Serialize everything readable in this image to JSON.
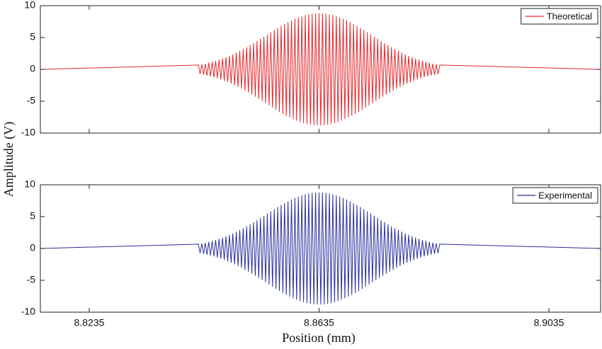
{
  "chart_data": {
    "type": "line",
    "panels": "stacked",
    "xlabel": "Position (mm)",
    "ylabel": "Amplitude (V)",
    "xlim": [
      8.815,
      8.9125
    ],
    "xticks": [
      8.8235,
      8.8635,
      8.9035
    ],
    "ylim": [
      -10,
      10
    ],
    "yticks": [
      10,
      5,
      0,
      -5,
      -10
    ],
    "legend": "upper right",
    "x": [
      8.815,
      8.8425,
      8.8428,
      8.8431,
      8.8434,
      8.8437,
      8.844,
      8.8443,
      8.8446,
      8.8449,
      8.8452,
      8.8455,
      8.8458,
      8.8461,
      8.8464,
      8.8467,
      8.847,
      8.8473,
      8.8476,
      8.8479,
      8.8482,
      8.8485,
      8.8488,
      8.8491,
      8.8494,
      8.8497,
      8.85,
      8.8503,
      8.8506,
      8.8509,
      8.8512,
      8.8515,
      8.8518,
      8.8521,
      8.8524,
      8.8527,
      8.853,
      8.8533,
      8.8536,
      8.8539,
      8.8542,
      8.8545,
      8.8548,
      8.8551,
      8.8554,
      8.8557,
      8.856,
      8.8563,
      8.8566,
      8.8569,
      8.8572,
      8.8575,
      8.8578,
      8.8581,
      8.8584,
      8.8587,
      8.859,
      8.8593,
      8.8596,
      8.8599,
      8.8602,
      8.8605,
      8.8608,
      8.8611,
      8.8614,
      8.8617,
      8.862,
      8.8623,
      8.8626,
      8.8629,
      8.8632,
      8.8635,
      8.8638,
      8.8641,
      8.8644,
      8.8647,
      8.865,
      8.8653,
      8.8656,
      8.8659,
      8.8662,
      8.8665,
      8.8668,
      8.8671,
      8.8674,
      8.8677,
      8.868,
      8.8683,
      8.8686,
      8.8689,
      8.8692,
      8.8695,
      8.8698,
      8.8701,
      8.8704,
      8.8707,
      8.871,
      8.8713,
      8.8716,
      8.8719,
      8.8722,
      8.8725,
      8.8728,
      8.8731,
      8.8734,
      8.8737,
      8.874,
      8.8743,
      8.8746,
      8.8749,
      8.8752,
      8.8755,
      8.8758,
      8.8761,
      8.8764,
      8.8767,
      8.877,
      8.8773,
      8.8776,
      8.8779,
      8.8782,
      8.8785,
      8.8788,
      8.8791,
      8.8794,
      8.8797,
      8.88,
      8.8803,
      8.8806,
      8.8809,
      8.8812,
      8.8815,
      8.8818,
      8.8821,
      8.8824,
      8.8827,
      8.883,
      8.8833,
      8.8836,
      8.8839,
      8.8842,
      8.8845,
      8.9125
    ],
    "series": [
      {
        "name": "Theoretical",
        "color": "#e3262b",
        "values": [
          0,
          0.68,
          -0.73,
          0.78,
          -0.84,
          0.9,
          -0.96,
          1.03,
          -1.1,
          1.17,
          -1.25,
          1.33,
          -1.42,
          1.51,
          -1.6,
          1.7,
          -1.8,
          1.91,
          -2.02,
          2.13,
          -2.25,
          2.37,
          -2.5,
          2.63,
          -2.76,
          2.9,
          -3.04,
          3.19,
          -3.34,
          3.49,
          -3.64,
          3.8,
          -3.96,
          4.13,
          -4.29,
          4.46,
          -4.63,
          4.8,
          -4.97,
          5.14,
          -5.32,
          5.49,
          -5.66,
          5.83,
          -6,
          6.17,
          -6.34,
          6.51,
          -6.67,
          6.83,
          -6.98,
          7.13,
          -7.28,
          7.43,
          -7.56,
          7.7,
          -7.82,
          7.94,
          -8.05,
          8.16,
          -8.26,
          8.35,
          -8.43,
          8.51,
          -8.58,
          8.64,
          -8.69,
          8.73,
          -8.76,
          8.78,
          -8.8,
          8.8,
          -8.8,
          8.78,
          -8.76,
          8.73,
          -8.69,
          8.64,
          -8.58,
          8.51,
          -8.43,
          8.35,
          -8.26,
          8.16,
          -8.05,
          7.94,
          -7.82,
          7.7,
          -7.56,
          7.43,
          -7.28,
          7.13,
          -6.98,
          6.83,
          -6.67,
          6.51,
          -6.34,
          6.17,
          -6,
          5.83,
          -5.66,
          5.49,
          -5.32,
          5.14,
          -4.97,
          4.8,
          -4.63,
          4.46,
          -4.29,
          4.13,
          -3.96,
          3.8,
          -3.64,
          3.49,
          -3.34,
          3.19,
          -3.04,
          2.9,
          -2.76,
          2.63,
          -2.5,
          2.37,
          -2.25,
          2.13,
          -2.02,
          1.91,
          -1.8,
          1.7,
          -1.6,
          1.51,
          -1.42,
          1.33,
          -1.25,
          1.17,
          -1.1,
          1.03,
          -0.96,
          0.9,
          -0.84,
          0.78,
          -0.73,
          0.68,
          0
        ]
      },
      {
        "name": "Experimental",
        "color": "#2a2f9c",
        "values": [
          0,
          0.68,
          -0.73,
          0.78,
          -0.84,
          0.9,
          -0.96,
          1.03,
          -1.1,
          1.17,
          -1.25,
          1.33,
          -1.42,
          1.51,
          -1.6,
          1.7,
          -1.8,
          1.91,
          -2.02,
          2.13,
          -2.25,
          2.37,
          -2.5,
          2.63,
          -2.76,
          2.9,
          -3.04,
          3.19,
          -3.34,
          3.49,
          -3.64,
          3.8,
          -3.96,
          4.13,
          -4.29,
          4.46,
          -4.63,
          4.8,
          -4.97,
          5.14,
          -5.32,
          5.49,
          -5.66,
          5.83,
          -6,
          6.17,
          -6.34,
          6.51,
          -6.67,
          6.83,
          -6.98,
          7.13,
          -7.28,
          7.43,
          -7.56,
          7.7,
          -7.82,
          7.94,
          -8.05,
          8.16,
          -8.26,
          8.35,
          -8.43,
          8.51,
          -8.58,
          8.64,
          -8.69,
          8.73,
          -8.76,
          8.78,
          -8.8,
          8.8,
          -8.8,
          8.78,
          -8.76,
          8.73,
          -8.69,
          8.64,
          -8.58,
          8.51,
          -8.43,
          8.35,
          -8.26,
          8.16,
          -8.05,
          7.94,
          -7.82,
          7.7,
          -7.56,
          7.43,
          -7.28,
          7.13,
          -6.98,
          6.83,
          -6.67,
          6.51,
          -6.34,
          6.17,
          -6,
          5.83,
          -5.66,
          5.49,
          -5.32,
          5.14,
          -4.97,
          4.8,
          -4.63,
          4.46,
          -4.29,
          4.13,
          -3.96,
          3.8,
          -3.64,
          3.49,
          -3.34,
          3.19,
          -3.04,
          2.9,
          -2.76,
          2.63,
          -2.5,
          2.37,
          -2.25,
          2.13,
          -2.02,
          1.91,
          -1.8,
          1.7,
          -1.6,
          1.51,
          -1.42,
          1.33,
          -1.25,
          1.17,
          -1.1,
          1.03,
          -0.96,
          0.9,
          -0.84,
          0.78,
          -0.73,
          0.68,
          0
        ]
      }
    ]
  }
}
